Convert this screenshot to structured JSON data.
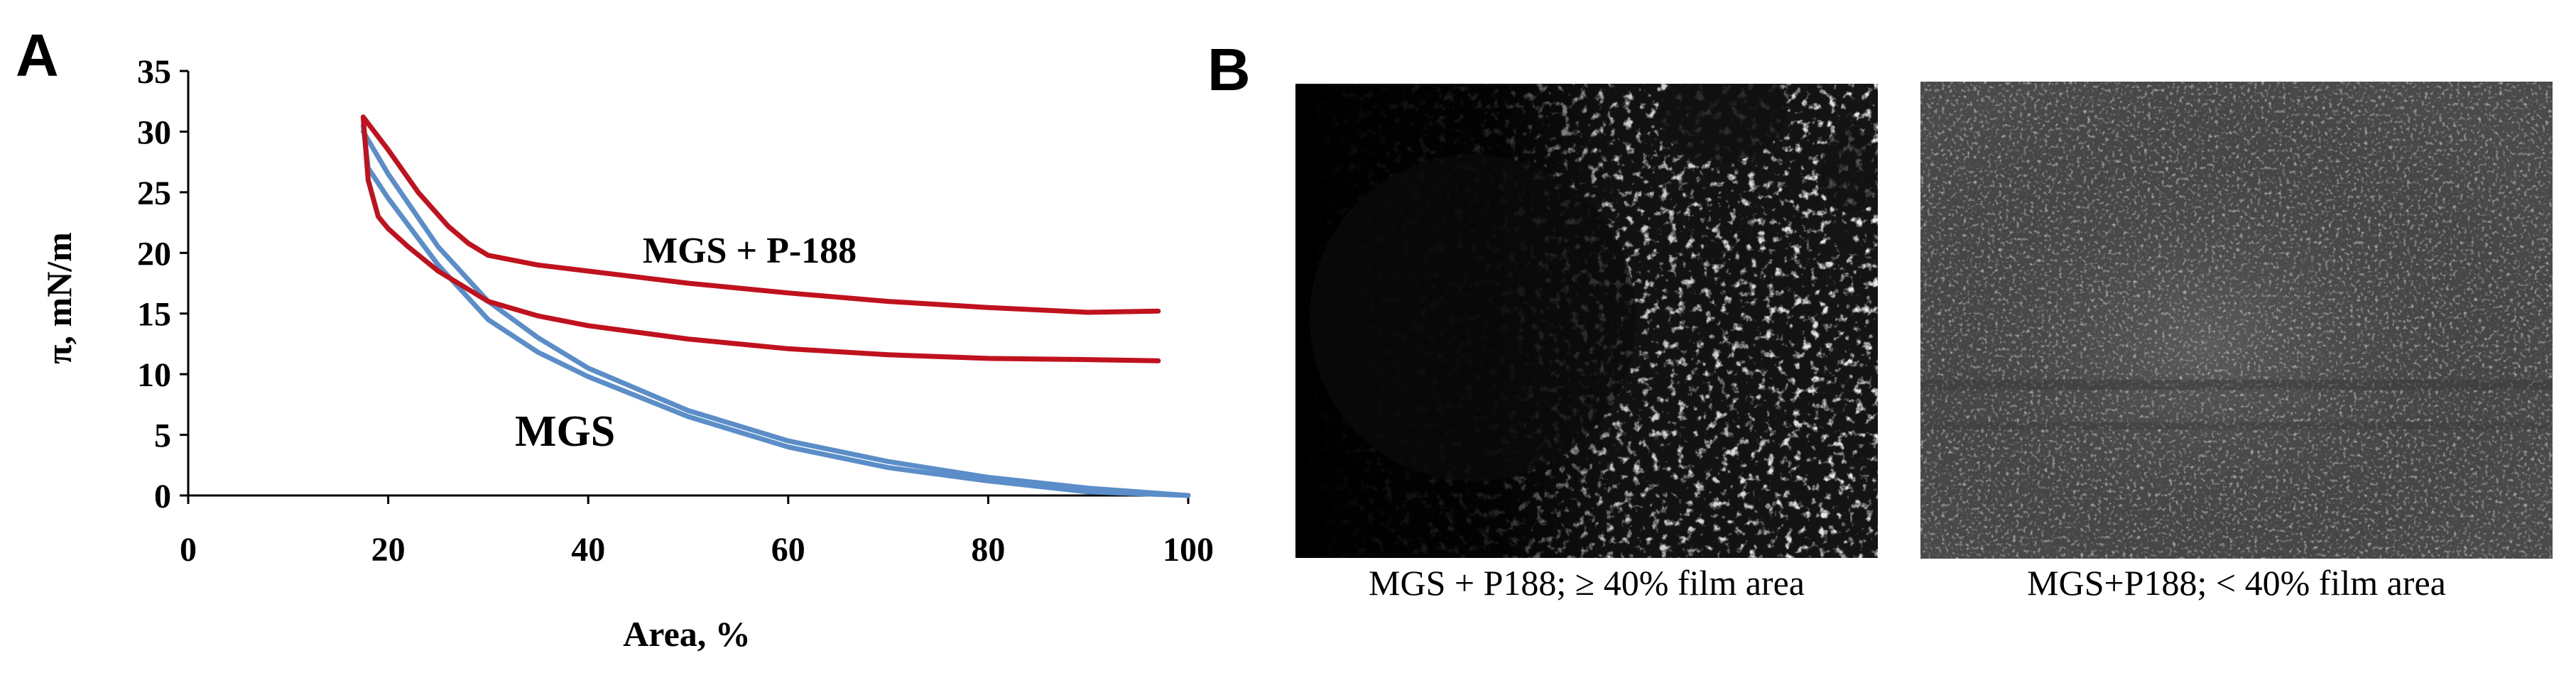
{
  "panels": {
    "a_letter": "A",
    "b_letter": "B"
  },
  "chart_data": {
    "type": "line",
    "xlabel": "Area, %",
    "ylabel": "π, mN/m",
    "xlim": [
      0,
      100
    ],
    "ylim": [
      0,
      35
    ],
    "xticks": [
      0,
      20,
      40,
      60,
      80,
      100
    ],
    "yticks": [
      0,
      5,
      10,
      15,
      20,
      25,
      30,
      35
    ],
    "grid": false,
    "annotations": [
      {
        "text": "MGS + P-188",
        "series": "MGS + P-188"
      },
      {
        "text": "MGS",
        "series": "MGS"
      }
    ],
    "series": [
      {
        "name": "MGS + P-188",
        "color": "#c0121e",
        "segments": [
          {
            "x": [
              17.5,
              20,
              23,
              26,
              28,
              30,
              35,
              40,
              50,
              60,
              70,
              80,
              90,
              97
            ],
            "y": [
              31.2,
              28.5,
              25.0,
              22.2,
              20.8,
              19.8,
              19.0,
              18.5,
              17.5,
              16.7,
              16.0,
              15.5,
              15.1,
              15.2
            ]
          },
          {
            "x": [
              17.5,
              18.0,
              19.0,
              20.0,
              22,
              25,
              30,
              35,
              40,
              50,
              60,
              70,
              80,
              90,
              97
            ],
            "y": [
              31.2,
              26.0,
              23.0,
              22.0,
              20.5,
              18.5,
              16.0,
              14.8,
              14.0,
              12.9,
              12.1,
              11.6,
              11.3,
              11.2,
              11.1
            ]
          }
        ]
      },
      {
        "name": "MGS",
        "color": "#5b8ec9",
        "segments": [
          {
            "x": [
              17.5,
              20,
              25,
              30,
              35,
              40,
              50,
              60,
              70,
              80,
              90,
              100
            ],
            "y": [
              30.0,
              26.5,
              20.5,
              16.0,
              13.0,
              10.5,
              7.0,
              4.5,
              2.8,
              1.5,
              0.6,
              0.0
            ]
          },
          {
            "x": [
              17.5,
              18,
              20,
              25,
              30,
              35,
              40,
              50,
              60,
              70,
              80,
              90,
              100
            ],
            "y": [
              30.5,
              27.0,
              24.5,
              19.0,
              14.5,
              11.8,
              9.8,
              6.5,
              4.0,
              2.3,
              1.2,
              0.3,
              0.0
            ]
          }
        ]
      }
    ]
  },
  "micrographs": [
    {
      "caption": "MGS + P188; ≥ 40% film area"
    },
    {
      "caption": "MGS+P188; < 40% film area"
    }
  ]
}
